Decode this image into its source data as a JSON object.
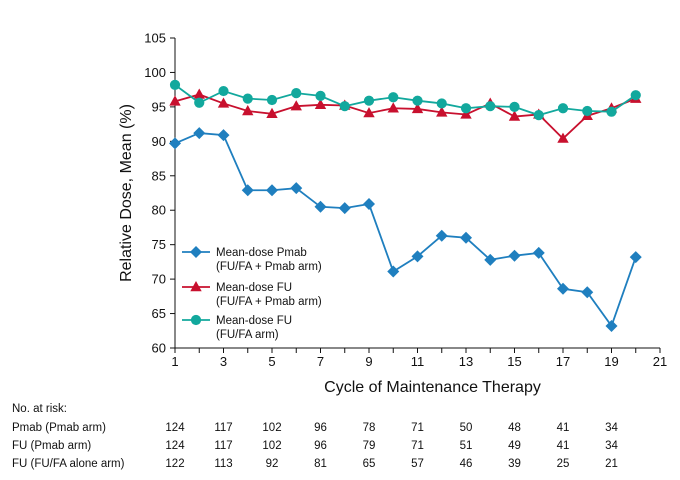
{
  "chart_data": {
    "type": "line",
    "title": "",
    "xlabel": "Cycle of Maintenance Therapy",
    "ylabel": "Relative Dose, Mean (%)",
    "xlim": [
      1,
      21
    ],
    "ylim": [
      60,
      105
    ],
    "x_ticks": [
      "1",
      "3",
      "5",
      "7",
      "9",
      "11",
      "13",
      "15",
      "17",
      "19",
      "21"
    ],
    "y_ticks": [
      "60",
      "65",
      "70",
      "75",
      "80",
      "85",
      "90",
      "95",
      "100",
      "105"
    ],
    "grid": false,
    "legend_position": "bottom-left",
    "x": [
      1,
      2,
      3,
      4,
      5,
      6,
      7,
      8,
      9,
      10,
      11,
      12,
      13,
      14,
      15,
      16,
      17,
      18,
      19,
      20
    ],
    "series": [
      {
        "name": "Mean-dose Pmab",
        "name_line2": "(FU/FA + Pmab arm)",
        "marker": "diamond",
        "color": "#1f7fbf",
        "values": [
          89.7,
          91.2,
          90.9,
          82.9,
          82.9,
          83.2,
          80.5,
          80.3,
          80.9,
          71.1,
          73.3,
          76.3,
          76.0,
          72.8,
          73.4,
          73.8,
          68.6,
          68.1,
          63.2,
          73.2
        ]
      },
      {
        "name": "Mean-dose FU",
        "name_line2": "(FU/FA + Pmab arm)",
        "marker": "triangle",
        "color": "#c8102e",
        "values": [
          95.8,
          96.8,
          95.5,
          94.4,
          94.0,
          95.1,
          95.3,
          95.2,
          94.1,
          94.8,
          94.7,
          94.2,
          93.9,
          95.5,
          93.6,
          93.9,
          90.4,
          93.7,
          94.8,
          96.2
        ]
      },
      {
        "name": "Mean-dose FU",
        "name_line2": "(FU/FA arm)",
        "marker": "circle",
        "color": "#12a89d",
        "values": [
          98.2,
          95.6,
          97.3,
          96.2,
          96.0,
          97.0,
          96.6,
          95.1,
          95.9,
          96.4,
          95.9,
          95.5,
          94.8,
          95.1,
          95.0,
          93.8,
          94.8,
          94.4,
          94.3,
          96.7
        ]
      }
    ],
    "at_risk": {
      "header": "No. at risk:",
      "x": [
        1,
        3,
        5,
        7,
        9,
        11,
        13,
        15,
        17,
        19
      ],
      "rows": [
        {
          "label": "Pmab (Pmab arm)",
          "values": [
            "124",
            "117",
            "102",
            "96",
            "78",
            "71",
            "50",
            "48",
            "41",
            "34"
          ]
        },
        {
          "label": "FU (Pmab arm)",
          "values": [
            "124",
            "117",
            "102",
            "96",
            "79",
            "71",
            "51",
            "49",
            "41",
            "34"
          ]
        },
        {
          "label": "FU (FU/FA alone arm)",
          "values": [
            "122",
            "113",
            "92",
            "81",
            "65",
            "57",
            "46",
            "39",
            "25",
            "21"
          ]
        }
      ]
    }
  }
}
